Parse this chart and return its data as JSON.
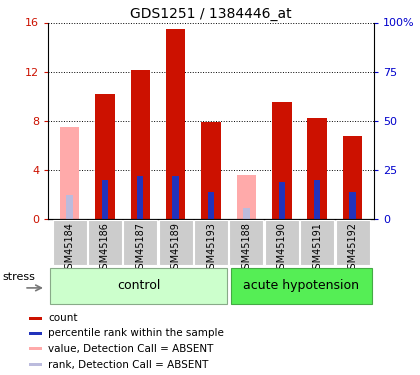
{
  "title": "GDS1251 / 1384446_at",
  "samples": [
    "GSM45184",
    "GSM45186",
    "GSM45187",
    "GSM45189",
    "GSM45193",
    "GSM45188",
    "GSM45190",
    "GSM45191",
    "GSM45192"
  ],
  "red_values": [
    0,
    10.2,
    12.1,
    15.5,
    7.9,
    0,
    9.5,
    8.2,
    6.8
  ],
  "pink_values": [
    7.5,
    0,
    0,
    0,
    0,
    3.6,
    0,
    0,
    0
  ],
  "blue_values": [
    0,
    3.2,
    3.5,
    3.5,
    2.2,
    0,
    3.0,
    3.2,
    2.2
  ],
  "lavender_values": [
    2.0,
    0,
    0,
    0,
    0,
    0.9,
    0,
    0,
    0
  ],
  "absent": [
    true,
    false,
    false,
    false,
    false,
    true,
    false,
    false,
    false
  ],
  "n_control": 5,
  "n_hypotension": 4,
  "ylim_left": [
    0,
    16
  ],
  "ylim_right": [
    0,
    100
  ],
  "yticks_left": [
    0,
    4,
    8,
    12,
    16
  ],
  "yticks_right": [
    0,
    25,
    50,
    75,
    100
  ],
  "ytick_labels_right": [
    "0",
    "25",
    "50",
    "75",
    "100%"
  ],
  "color_red": "#CC1100",
  "color_pink": "#FFAAAA",
  "color_blue": "#2233BB",
  "color_lavender": "#BBBBDD",
  "color_control_bg": "#CCFFCC",
  "color_hypotension_bg": "#55EE55",
  "color_tickbg": "#CCCCCC",
  "bar_width": 0.55,
  "blue_bar_width": 0.18,
  "group_labels": [
    "control",
    "acute hypotension"
  ],
  "stress_label": "stress",
  "legend_items": [
    {
      "label": "count",
      "color": "#CC1100"
    },
    {
      "label": "percentile rank within the sample",
      "color": "#2233BB"
    },
    {
      "label": "value, Detection Call = ABSENT",
      "color": "#FFAAAA"
    },
    {
      "label": "rank, Detection Call = ABSENT",
      "color": "#BBBBDD"
    }
  ]
}
